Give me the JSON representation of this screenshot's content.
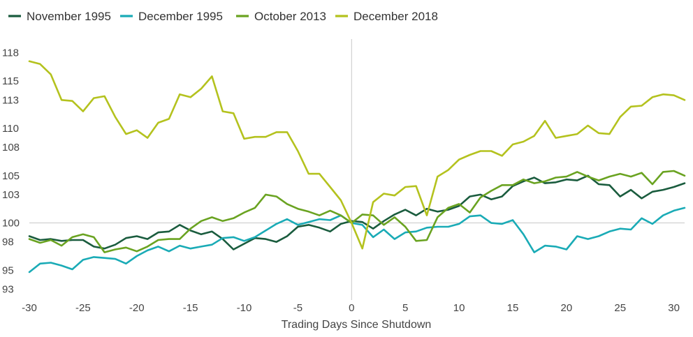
{
  "chart_data": {
    "type": "line",
    "xlabel": "Trading Days Since Shutdown",
    "ylabel": "",
    "xlim": [
      -30,
      31
    ],
    "ylim": [
      92,
      119
    ],
    "xticks": [
      -30,
      -25,
      -20,
      -15,
      -10,
      -5,
      0,
      5,
      10,
      15,
      20,
      25,
      30
    ],
    "yticks": [
      93,
      95,
      98,
      100,
      103,
      105,
      108,
      110,
      113,
      115,
      118
    ],
    "reference_line": {
      "y": 100,
      "x": 0
    },
    "legend_position": "top-left",
    "x": [
      -30,
      -29,
      -28,
      -27,
      -26,
      -25,
      -24,
      -23,
      -22,
      -21,
      -20,
      -19,
      -18,
      -17,
      -16,
      -15,
      -14,
      -13,
      -12,
      -11,
      -10,
      -9,
      -8,
      -7,
      -6,
      -5,
      -4,
      -3,
      -2,
      -1,
      0,
      1,
      2,
      3,
      4,
      5,
      6,
      7,
      8,
      9,
      10,
      11,
      12,
      13,
      14,
      15,
      16,
      17,
      18,
      19,
      20,
      21,
      22,
      23,
      24,
      25,
      26,
      27,
      28,
      29,
      30,
      31
    ],
    "series": [
      {
        "name": "November 1995",
        "color": "#1a5c3e",
        "values": [
          98.6,
          98.2,
          98.3,
          98.1,
          98.2,
          98.2,
          97.5,
          97.3,
          97.7,
          98.4,
          98.6,
          98.3,
          99.0,
          99.1,
          99.8,
          99.2,
          98.8,
          99.1,
          98.3,
          97.2,
          97.8,
          98.4,
          98.3,
          98.0,
          98.6,
          99.6,
          99.8,
          99.5,
          99.1,
          99.9,
          100.2,
          100.1,
          99.4,
          100.2,
          100.9,
          101.4,
          100.8,
          101.5,
          101.2,
          101.4,
          101.8,
          102.8,
          103.0,
          102.5,
          102.8,
          103.9,
          104.4,
          104.8,
          104.2,
          104.3,
          104.6,
          104.5,
          105.0,
          104.1,
          104.0,
          102.8,
          103.5,
          102.6,
          103.3,
          103.5,
          103.8,
          104.2
        ]
      },
      {
        "name": "December 1995",
        "color": "#1aabb6",
        "values": [
          94.8,
          95.7,
          95.8,
          95.5,
          95.1,
          96.1,
          96.4,
          96.3,
          96.2,
          95.7,
          96.5,
          97.1,
          97.5,
          97.0,
          97.6,
          97.3,
          97.5,
          97.7,
          98.4,
          98.5,
          98.1,
          98.5,
          99.2,
          99.9,
          100.4,
          99.8,
          100.1,
          100.4,
          100.3,
          100.8,
          100.0,
          99.8,
          98.5,
          99.3,
          98.3,
          99.0,
          99.1,
          99.5,
          99.6,
          99.6,
          99.9,
          100.7,
          100.8,
          100.0,
          99.9,
          100.3,
          98.8,
          96.9,
          97.6,
          97.5,
          97.2,
          98.6,
          98.3,
          98.6,
          99.1,
          99.4,
          99.3,
          100.5,
          99.9,
          100.8,
          101.3,
          101.6
        ]
      },
      {
        "name": "October 2013",
        "color": "#6aa321",
        "values": [
          98.3,
          97.9,
          98.2,
          97.6,
          98.5,
          98.8,
          98.5,
          96.9,
          97.2,
          97.4,
          97.0,
          97.5,
          98.2,
          98.3,
          98.3,
          99.4,
          100.2,
          100.6,
          100.2,
          100.5,
          101.1,
          101.6,
          103.0,
          102.8,
          102.0,
          101.5,
          101.2,
          100.8,
          101.3,
          100.8,
          100.0,
          100.9,
          100.8,
          99.8,
          100.6,
          99.6,
          98.1,
          98.2,
          100.6,
          101.6,
          102.0,
          101.1,
          102.7,
          103.4,
          104.0,
          104.0,
          104.6,
          104.2,
          104.4,
          104.8,
          104.9,
          105.4,
          104.9,
          104.5,
          104.9,
          105.2,
          104.9,
          105.3,
          104.1,
          105.4,
          105.5,
          105.0
        ]
      },
      {
        "name": "December 2018",
        "color": "#b4c21e",
        "values": [
          117.1,
          116.8,
          115.7,
          113.0,
          112.9,
          111.8,
          113.2,
          113.4,
          111.2,
          109.4,
          109.8,
          109.0,
          110.6,
          111.0,
          113.6,
          113.3,
          114.2,
          115.5,
          111.8,
          111.6,
          108.9,
          109.1,
          109.1,
          109.6,
          109.6,
          107.6,
          105.2,
          105.2,
          103.8,
          102.4,
          100.0,
          97.3,
          102.2,
          103.1,
          102.9,
          103.8,
          103.9,
          100.8,
          104.9,
          105.6,
          106.7,
          107.2,
          107.6,
          107.6,
          107.1,
          108.3,
          108.6,
          109.2,
          110.8,
          109.0,
          109.2,
          109.4,
          110.3,
          109.5,
          109.4,
          111.2,
          112.3,
          112.4,
          113.3,
          113.6,
          113.5,
          113.0
        ]
      }
    ]
  }
}
